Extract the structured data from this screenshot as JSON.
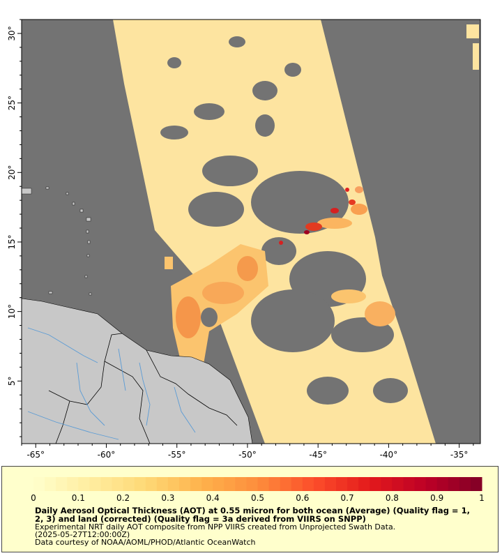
{
  "map": {
    "x_axis": {
      "range": [
        -66,
        -33.5
      ],
      "ticks": [
        {
          "value": -65,
          "label": "-65°"
        },
        {
          "value": -60,
          "label": "-60°"
        },
        {
          "value": -55,
          "label": "-55°"
        },
        {
          "value": -50,
          "label": "-50°"
        },
        {
          "value": -45,
          "label": "-45°"
        },
        {
          "value": -40,
          "label": "-40°"
        },
        {
          "value": -35,
          "label": "-35°"
        }
      ]
    },
    "y_axis": {
      "range": [
        0.5,
        31
      ],
      "ticks": [
        {
          "value": 5,
          "label": "5°"
        },
        {
          "value": 10,
          "label": "10°"
        },
        {
          "value": 15,
          "label": "15°"
        },
        {
          "value": 20,
          "label": "20°"
        },
        {
          "value": 25,
          "label": "25°"
        },
        {
          "value": 30,
          "label": "30°"
        }
      ]
    },
    "colors": {
      "no_data": "#737373",
      "land": "#c8c8c8",
      "rivers": "#5a9bd5",
      "borders": "#000000",
      "frame": "#000000"
    }
  },
  "legend": {
    "background": "#ffffcc",
    "colorbar": {
      "min": 0,
      "max": 1,
      "steps": 40,
      "colors": [
        "#ffffcc",
        "#ffeda0",
        "#fed976",
        "#feb24c",
        "#fd8d3c",
        "#fc4e2a",
        "#e31a1c",
        "#bd0026",
        "#800026"
      ],
      "tick_labels": [
        "0",
        "0.1",
        "0.2",
        "0.3",
        "0.4",
        "0.5",
        "0.6",
        "0.7",
        "0.8",
        "0.9",
        "1"
      ]
    },
    "title": "Daily Aerosol Optical Thickness (AOT) at 0.55 micron for both ocean (Average) (Quality flag = 1, 2, 3) and land (corrected) (Quality flag = 3a derived from VIIRS on SNPP)",
    "line1": "Experimental NRT daily AOT composite from NPP VIIRS created from Unprojected Swath Data.",
    "line2": "(2025-05-27T12:00:00Z)",
    "line3": "Data courtesy of NOAA/AOML/PHOD/Atlantic OceanWatch"
  }
}
